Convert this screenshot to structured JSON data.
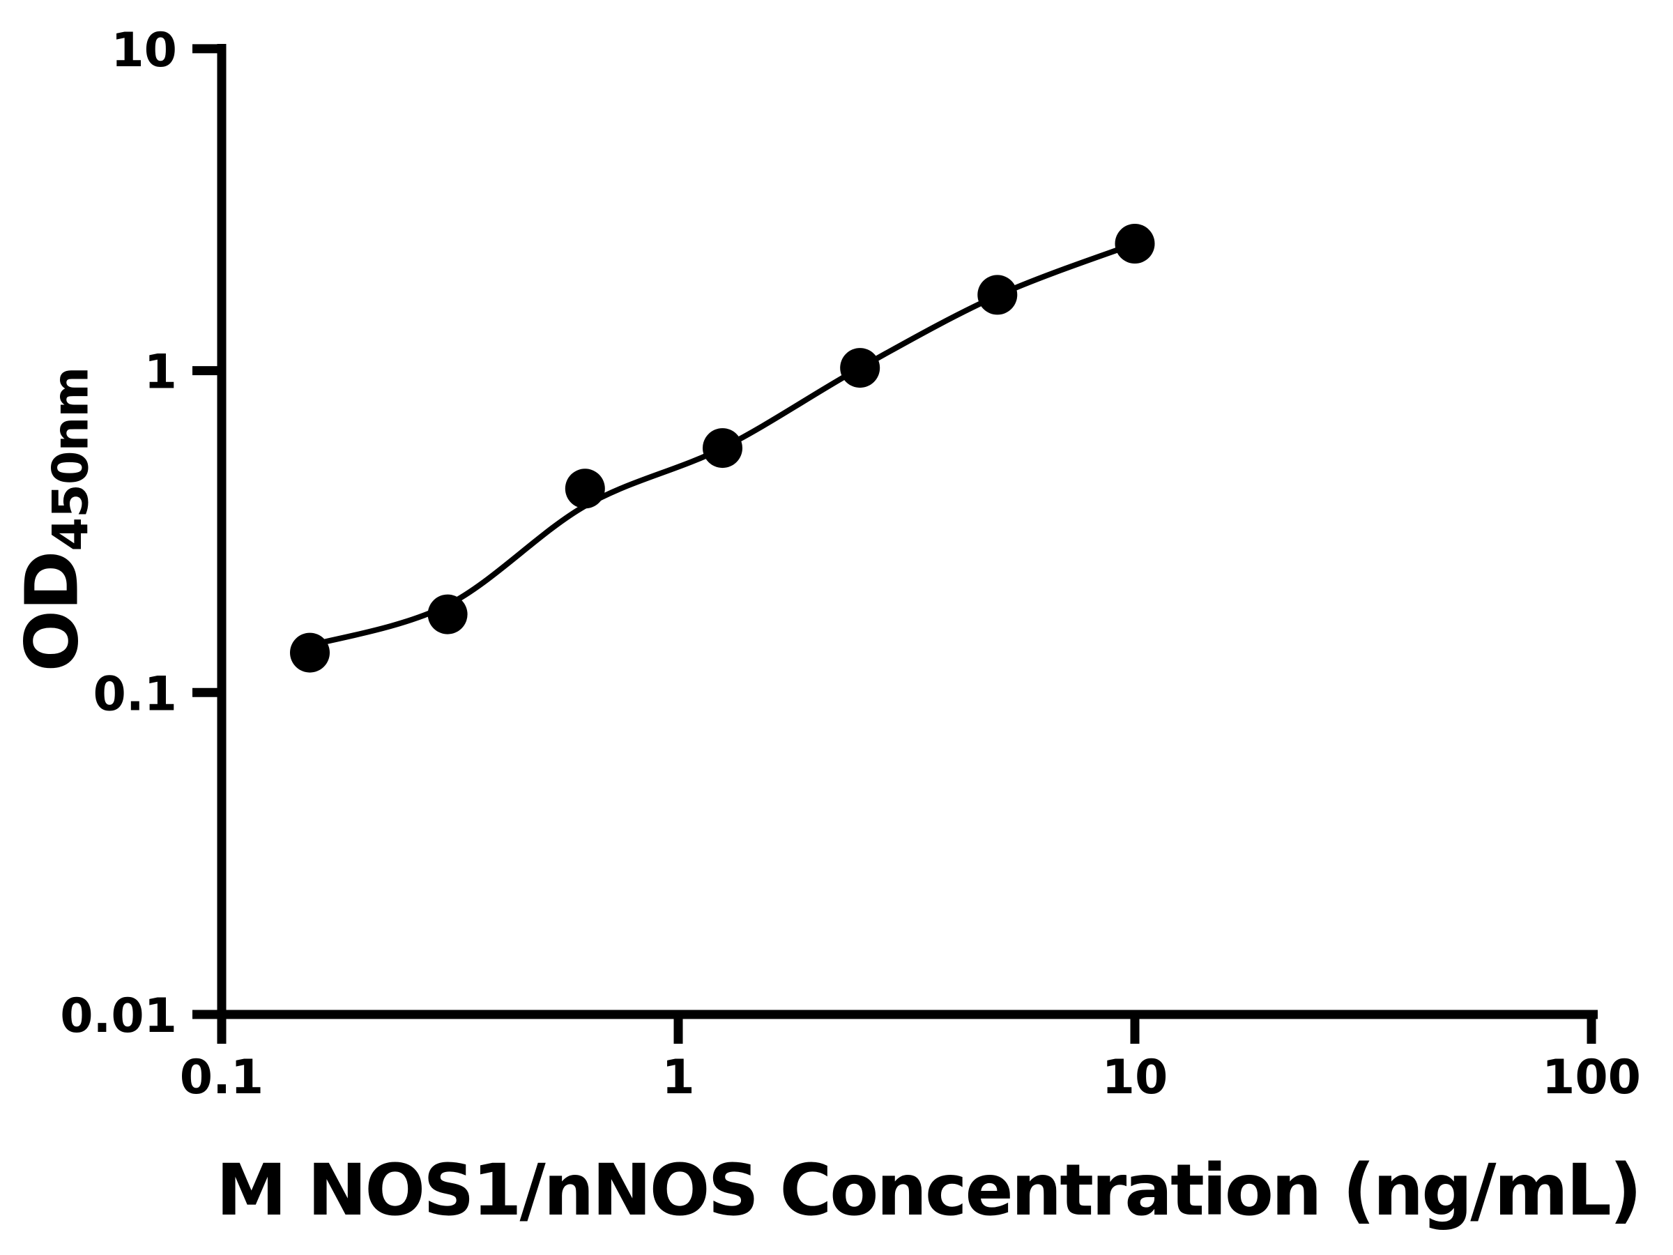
{
  "chart_data": {
    "type": "scatter",
    "title": "",
    "xlabel": "M NOS1/nNOS Concentration (ng/mL)",
    "ylabel": "OD",
    "ylabel_sub": "450nm",
    "x_scale": "log",
    "y_scale": "log",
    "xlim": [
      0.1,
      100
    ],
    "ylim": [
      0.01,
      10
    ],
    "x_ticks": [
      {
        "value": 0.1,
        "label": "0.1"
      },
      {
        "value": 1,
        "label": "1"
      },
      {
        "value": 10,
        "label": "10"
      },
      {
        "value": 100,
        "label": "100"
      }
    ],
    "y_ticks": [
      {
        "value": 10,
        "label": "10"
      },
      {
        "value": 1,
        "label": "1"
      },
      {
        "value": 0.1,
        "label": "0.1"
      },
      {
        "value": 0.01,
        "label": "0.01"
      }
    ],
    "grid": false,
    "legend": false,
    "series": [
      {
        "name": "standard-points",
        "marker": "circle",
        "color": "#000000",
        "points": [
          {
            "x": 0.156,
            "y": 0.133
          },
          {
            "x": 0.3125,
            "y": 0.175
          },
          {
            "x": 0.625,
            "y": 0.43
          },
          {
            "x": 1.25,
            "y": 0.575
          },
          {
            "x": 2.5,
            "y": 1.02
          },
          {
            "x": 5,
            "y": 1.72
          },
          {
            "x": 10,
            "y": 2.48
          }
        ]
      }
    ],
    "fit_curve": {
      "name": "4pl-fit-curve",
      "color": "#000000",
      "anchors": [
        {
          "x": 0.156,
          "y": 0.14
        },
        {
          "x": 0.3125,
          "y": 0.187
        },
        {
          "x": 0.625,
          "y": 0.38
        },
        {
          "x": 1.25,
          "y": 0.575
        },
        {
          "x": 2.5,
          "y": 1.02
        },
        {
          "x": 5,
          "y": 1.71
        },
        {
          "x": 10,
          "y": 2.48
        }
      ]
    },
    "colors": {
      "foreground": "#000000",
      "background": "#ffffff"
    }
  }
}
